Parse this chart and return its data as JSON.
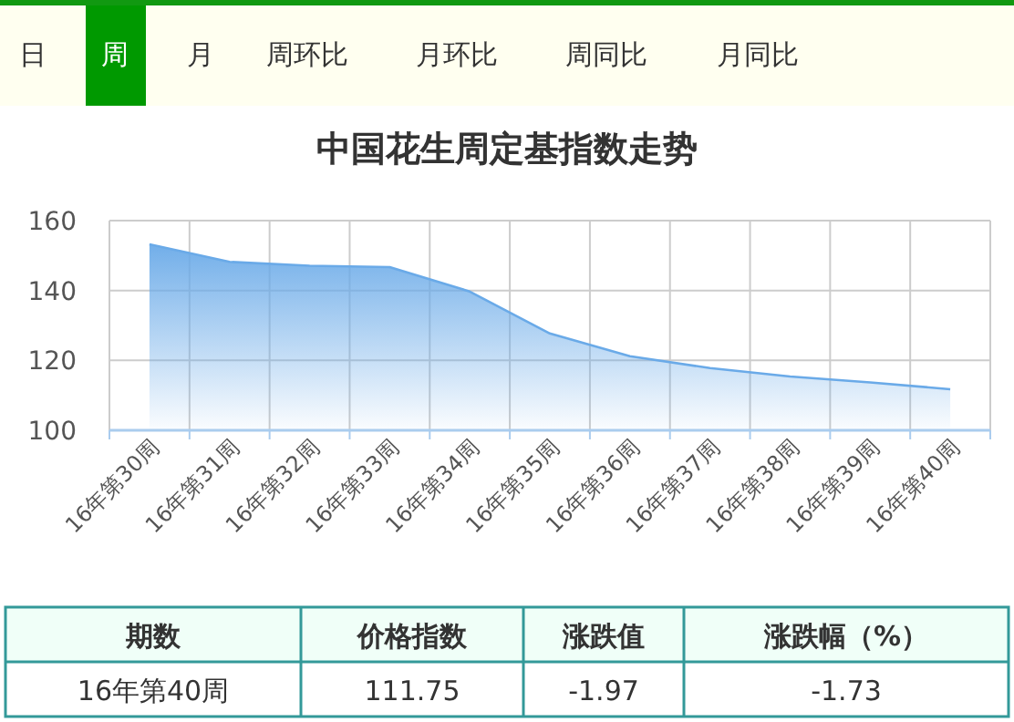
{
  "chart_data": {
    "type": "area",
    "title": "中国花生周定基指数走势",
    "categories": [
      "16年第30周",
      "16年第31周",
      "16年第32周",
      "16年第33周",
      "16年第34周",
      "16年第35周",
      "16年第36周",
      "16年第37周",
      "16年第38周",
      "16年第39周",
      "16年第40周"
    ],
    "values": [
      153.2,
      148.2,
      147.1,
      146.7,
      139.7,
      127.7,
      121.2,
      117.8,
      115.4,
      113.7,
      111.75
    ],
    "color": "#6aaae8",
    "ylim": [
      100,
      160
    ],
    "yticks": [
      100,
      120,
      140,
      160
    ],
    "grid": true,
    "annotations": [
      "日",
      "周",
      "月",
      "周环比",
      "月环比",
      "周同比",
      "月同比",
      "期数",
      "价格指数",
      "涨跌值",
      "涨跌幅（%）",
      "16年第40周",
      "111.75",
      "-1.97",
      "-1.73"
    ]
  }
}
